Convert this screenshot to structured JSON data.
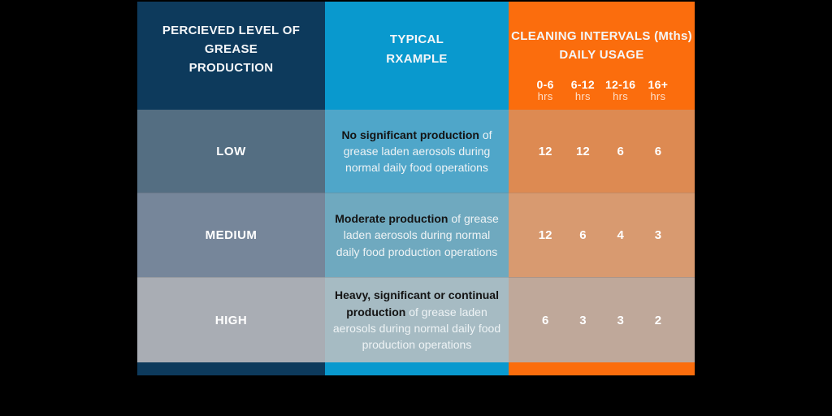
{
  "colors": {
    "background": "#000000",
    "navy": "#0d3a5c",
    "blue": "#0999ce",
    "orange": "#fb6d0d",
    "row_low": [
      "#546e82",
      "#4fa6c9",
      "#dd8a52"
    ],
    "row_medium": [
      "#76869a",
      "#6fa9bf",
      "#d89a70"
    ],
    "row_high": [
      "#a9adb4",
      "#a6bbc3",
      "#bfa89a"
    ],
    "text_light": "#ffffff",
    "text_dark": "#141414"
  },
  "table": {
    "header": {
      "col1_line1": "PERCIEVED LEVEL OF GREASE",
      "col1_line2": "PRODUCTION",
      "col2_line1": "TYPICAL",
      "col2_line2": "RXAMPLE",
      "col3_line1": "CLEANING INTERVALS  (Mths)",
      "col3_line2": "DAILY USAGE"
    },
    "usage_columns": [
      {
        "range": "0-6",
        "unit": "hrs"
      },
      {
        "range": "6-12",
        "unit": "hrs"
      },
      {
        "range": "12-16",
        "unit": "hrs"
      },
      {
        "range": "16+",
        "unit": "hrs"
      }
    ],
    "rows": [
      {
        "level": "LOW",
        "desc_bold": "No significant production",
        "desc_rest": " of grease laden aerosols during normal daily food operations",
        "intervals": [
          "12",
          "12",
          "6",
          "6"
        ]
      },
      {
        "level": "MEDIUM",
        "desc_bold": "Moderate production",
        "desc_rest": " of grease laden aerosols during normal daily food production operations",
        "intervals": [
          "12",
          "6",
          "4",
          "3"
        ]
      },
      {
        "level": "HIGH",
        "desc_bold": "Heavy, significant or continual production",
        "desc_rest": " of grease laden aerosols during normal daily food production operations",
        "intervals": [
          "6",
          "3",
          "3",
          "2"
        ]
      }
    ]
  },
  "chart_data": {
    "type": "table",
    "title": "CLEANING INTERVALS (Mths) DAILY USAGE",
    "columns": [
      "PERCIEVED LEVEL OF GREASE PRODUCTION",
      "TYPICAL RXAMPLE",
      "0-6 hrs",
      "6-12 hrs",
      "12-16 hrs",
      "16+ hrs"
    ],
    "rows": [
      [
        "LOW",
        "No significant production of grease laden aerosols during normal daily food operations",
        12,
        12,
        6,
        6
      ],
      [
        "MEDIUM",
        "Moderate production of grease laden aerosols during normal daily food production operations",
        12,
        6,
        4,
        3
      ],
      [
        "HIGH",
        "Heavy, significant or continual production of grease laden aerosols during normal daily food production operations",
        6,
        3,
        3,
        2
      ]
    ]
  }
}
